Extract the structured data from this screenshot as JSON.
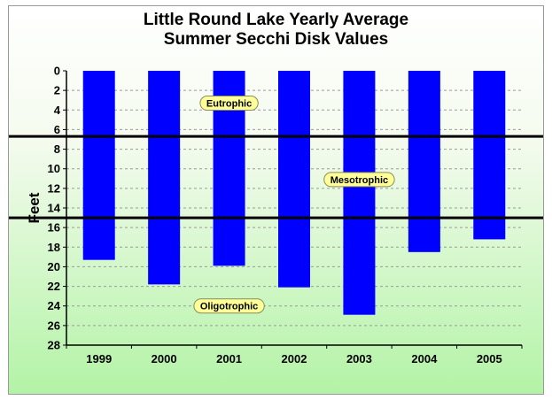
{
  "chart_data": {
    "type": "bar",
    "title": "Little Round Lake Yearly Average",
    "subtitle": "Summer Secchi Disk Values",
    "ylabel": "Feet",
    "xlabel": "",
    "y_inverted": true,
    "ylim": [
      0,
      28
    ],
    "yticks": [
      0,
      2,
      4,
      6,
      8,
      10,
      12,
      14,
      16,
      18,
      20,
      22,
      24,
      26,
      28
    ],
    "categories": [
      "1999",
      "2000",
      "2001",
      "2002",
      "2003",
      "2004",
      "2005"
    ],
    "values": [
      19.3,
      21.8,
      19.9,
      22.1,
      24.9,
      18.5,
      17.2
    ],
    "bar_color": "#0000ff",
    "grid": true,
    "reference_lines": [
      6.7,
      15.0
    ],
    "annotations": [
      {
        "text": "Eutrophic",
        "category": "2001",
        "y": 3.3
      },
      {
        "text": "Mesotrophic",
        "category": "2003",
        "y": 11.1
      },
      {
        "text": "Oligotrophic",
        "category": "2001",
        "y": 24.0
      }
    ]
  }
}
